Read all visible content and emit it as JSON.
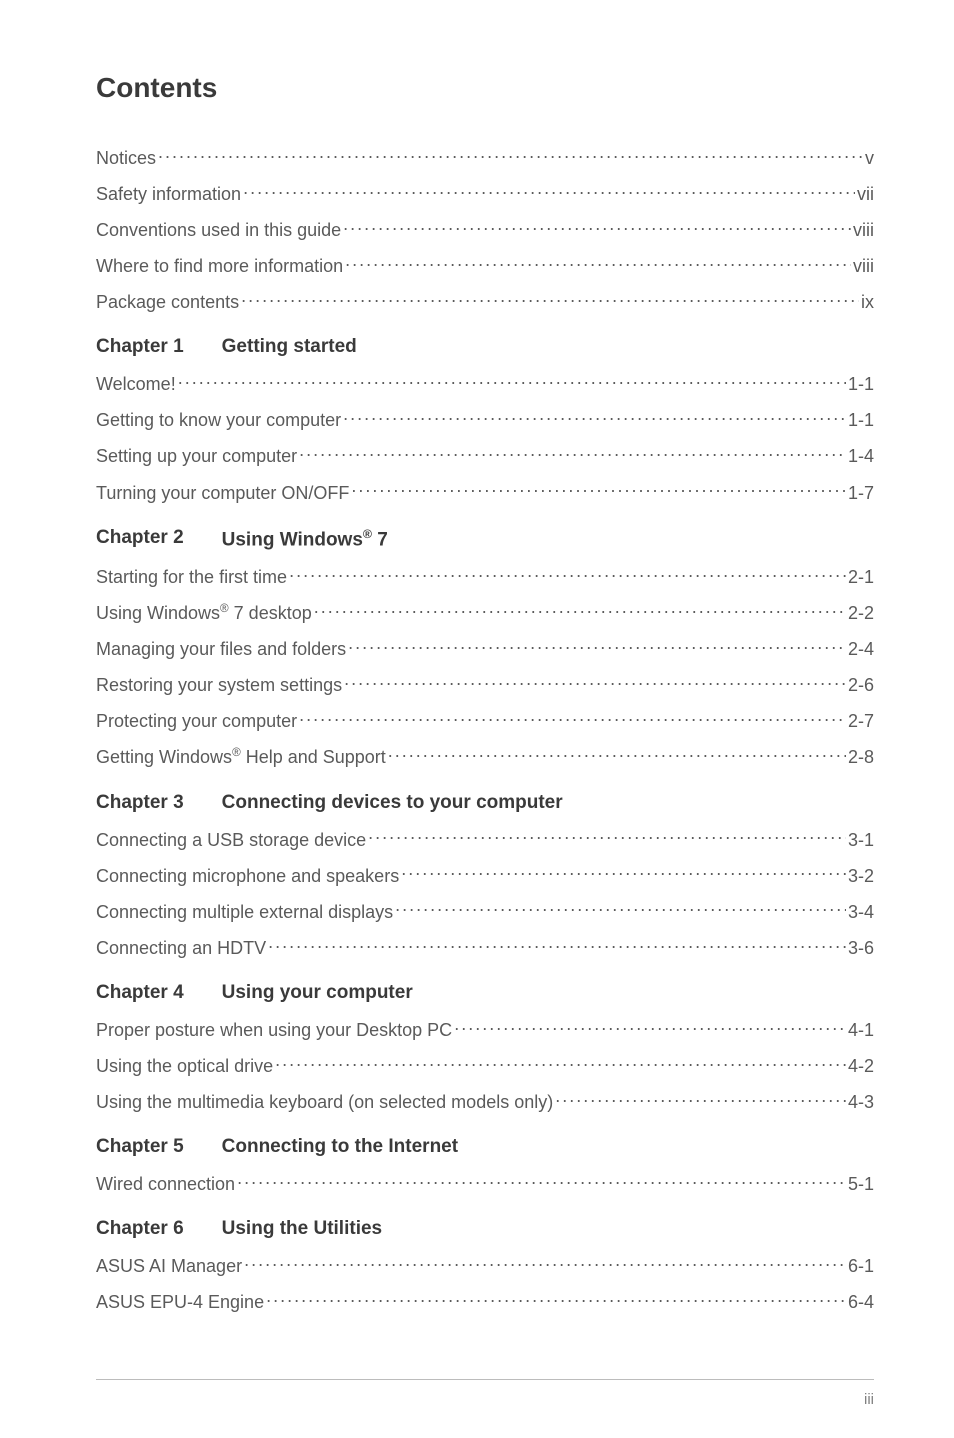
{
  "title": "Contents",
  "front": [
    {
      "label": "Notices",
      "page": "v"
    },
    {
      "label": "Safety information",
      "page": "vii"
    },
    {
      "label": "Conventions used in this guide",
      "page": "viii"
    },
    {
      "label": "Where to find more information",
      "page": "viii"
    },
    {
      "label": "Package contents",
      "page": "ix"
    }
  ],
  "chapters": [
    {
      "label": "Chapter 1",
      "title": "Getting started",
      "items": [
        {
          "label": "Welcome!",
          "page": "1-1"
        },
        {
          "label": "Getting to know your computer",
          "page": "1-1"
        },
        {
          "label": "Setting up your computer",
          "page": "1-4"
        },
        {
          "label": "Turning your computer ON/OFF",
          "page": "1-7"
        }
      ]
    },
    {
      "label": "Chapter 2",
      "title_html": "Using Windows<sup>®</sup> 7",
      "items": [
        {
          "label": "Starting for the first time",
          "page": "2-1"
        },
        {
          "label_html": "Using Windows<sup>®</sup> 7 desktop",
          "page": "2-2"
        },
        {
          "label": "Managing your files and folders",
          "page": "2-4"
        },
        {
          "label": "Restoring your system settings",
          "page": "2-6"
        },
        {
          "label": "Protecting your computer",
          "page": "2-7"
        },
        {
          "label_html": "Getting Windows<sup>®</sup> Help and Support",
          "page": "2-8"
        }
      ]
    },
    {
      "label": "Chapter 3",
      "title": "Connecting devices to your computer",
      "items": [
        {
          "label": "Connecting a USB storage device",
          "page": "3-1"
        },
        {
          "label": "Connecting microphone and speakers",
          "page": "3-2"
        },
        {
          "label": "Connecting multiple external displays",
          "page": "3-4"
        },
        {
          "label": "Connecting an HDTV",
          "page": "3-6"
        }
      ]
    },
    {
      "label": "Chapter 4",
      "title": "Using your computer",
      "items": [
        {
          "label": "Proper posture when using your Desktop PC",
          "page": "4-1"
        },
        {
          "label": "Using the optical drive",
          "page": "4-2"
        },
        {
          "label": "Using the multimedia keyboard (on selected models only)",
          "page": "4-3"
        }
      ]
    },
    {
      "label": "Chapter 5",
      "title": "Connecting to the Internet",
      "items": [
        {
          "label": "Wired connection",
          "page": "5-1"
        }
      ]
    },
    {
      "label": "Chapter 6",
      "title": "Using the Utilities",
      "items": [
        {
          "label": "ASUS AI Manager",
          "page": "6-1"
        },
        {
          "label": "ASUS EPU-4 Engine",
          "page": "6-4"
        }
      ]
    }
  ],
  "page_number": "iii",
  "colors": {
    "text": "#5a5a5a",
    "heading": "#3a3a3a",
    "rule": "#bcbcbc",
    "background": "#ffffff"
  },
  "typography": {
    "title_fontsize": 28,
    "body_fontsize": 18,
    "chapter_fontsize": 19,
    "pagenum_fontsize": 15
  }
}
